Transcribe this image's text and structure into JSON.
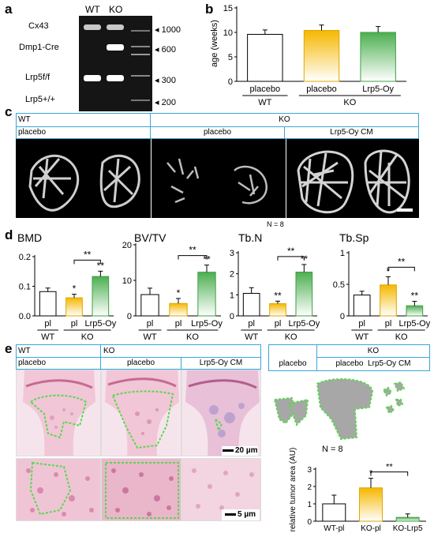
{
  "panels": {
    "a": "a",
    "b": "b",
    "c": "c",
    "d": "d",
    "e": "e"
  },
  "panel_a": {
    "lanes": [
      "WT",
      "KO"
    ],
    "bands": [
      "Cx43",
      "Dmp1-Cre",
      "Lrp5f/f",
      "Lrp5+/+"
    ],
    "ladder": [
      "1000",
      "600",
      "300",
      "200"
    ]
  },
  "panel_c": {
    "wt": "WT",
    "wt_sub": "placebo",
    "ko": "KO",
    "ko_sub1": "placebo",
    "ko_sub2": "Lrp5-Oy CM",
    "n": "N = 8"
  },
  "panel_e": {
    "wt": "WT",
    "wt_sub": "placebo",
    "ko": "KO",
    "ko_sub1": "placebo",
    "ko_sub2": "Lrp5-Oy CM",
    "sil_placebo": "placebo",
    "sil_ko": "KO",
    "sil_ko_sub": "placebo  Lrp5-Oy CM",
    "scale1": "20 µm",
    "scale2": "5 µm",
    "n": "N = 8"
  },
  "chart_data": [
    {
      "type": "bar",
      "id": "b",
      "title": "",
      "ylabel": "age (weeks)",
      "ylim": [
        0,
        15
      ],
      "yticks": [
        0,
        5,
        10,
        15
      ],
      "categories": [
        "placebo",
        "placebo",
        "Lrp5-Oy"
      ],
      "groups": [
        "WT",
        "KO"
      ],
      "values": [
        9.6,
        10.4,
        10.0
      ],
      "errors": [
        0.9,
        1.1,
        1.2
      ],
      "colors": [
        "#ffffff",
        "#f5b800",
        "#4caf50"
      ]
    },
    {
      "type": "bar",
      "id": "d1",
      "title": "BMD",
      "ylim": [
        0,
        0.2
      ],
      "yticks": [
        "0.0",
        "0.1",
        "0.2"
      ],
      "categories": [
        "pl",
        "pl",
        "Lrp5-Oy"
      ],
      "groups": [
        "WT",
        "KO"
      ],
      "values": [
        0.082,
        0.061,
        0.133
      ],
      "errors": [
        0.012,
        0.012,
        0.018
      ],
      "sig": [
        "",
        "*",
        "**"
      ],
      "bracket": "**"
    },
    {
      "type": "bar",
      "id": "d2",
      "title": "BV/TV",
      "ylim": [
        0,
        20
      ],
      "yticks": [
        "0",
        "10",
        "20"
      ],
      "categories": [
        "pl",
        "pl",
        "Lrp5-Oy"
      ],
      "groups": [
        "WT",
        "KO"
      ],
      "values": [
        6.0,
        3.5,
        12.3
      ],
      "errors": [
        1.8,
        1.4,
        2.0
      ],
      "sig": [
        "",
        "*",
        "**"
      ],
      "bracket": "**"
    },
    {
      "type": "bar",
      "id": "d3",
      "title": "Tb.N",
      "ylim": [
        0,
        3
      ],
      "yticks": [
        "0",
        "1",
        "2",
        "3"
      ],
      "categories": [
        "pl",
        "pl",
        "Lrp5-Oy"
      ],
      "groups": [
        "WT",
        "KO"
      ],
      "values": [
        1.07,
        0.58,
        2.08
      ],
      "errors": [
        0.27,
        0.12,
        0.36
      ],
      "sig": [
        "",
        "**",
        "**"
      ],
      "bracket": "**"
    },
    {
      "type": "bar",
      "id": "d4",
      "title": "Tb.Sp",
      "ylim": [
        0,
        1
      ],
      "yticks": [
        "0",
        "0.5",
        "1"
      ],
      "categories": [
        "pl",
        "pl",
        "Lrp5-Oy"
      ],
      "groups": [
        "WT",
        "KO"
      ],
      "values": [
        0.33,
        0.49,
        0.16
      ],
      "errors": [
        0.06,
        0.13,
        0.07
      ],
      "sig": [
        "",
        "*",
        "**"
      ],
      "bracket": "**"
    },
    {
      "type": "bar",
      "id": "e",
      "ylabel": "relative tumor area (AU)",
      "ylim": [
        0,
        3
      ],
      "yticks": [
        "0",
        "1",
        "2",
        "3"
      ],
      "categories": [
        "WT-pl",
        "KO-pl",
        "KO-Lrp5"
      ],
      "values": [
        1.0,
        1.92,
        0.22
      ],
      "errors": [
        0.5,
        0.55,
        0.2
      ],
      "sig": [
        "",
        "*",
        ""
      ],
      "bracket": "**"
    }
  ]
}
